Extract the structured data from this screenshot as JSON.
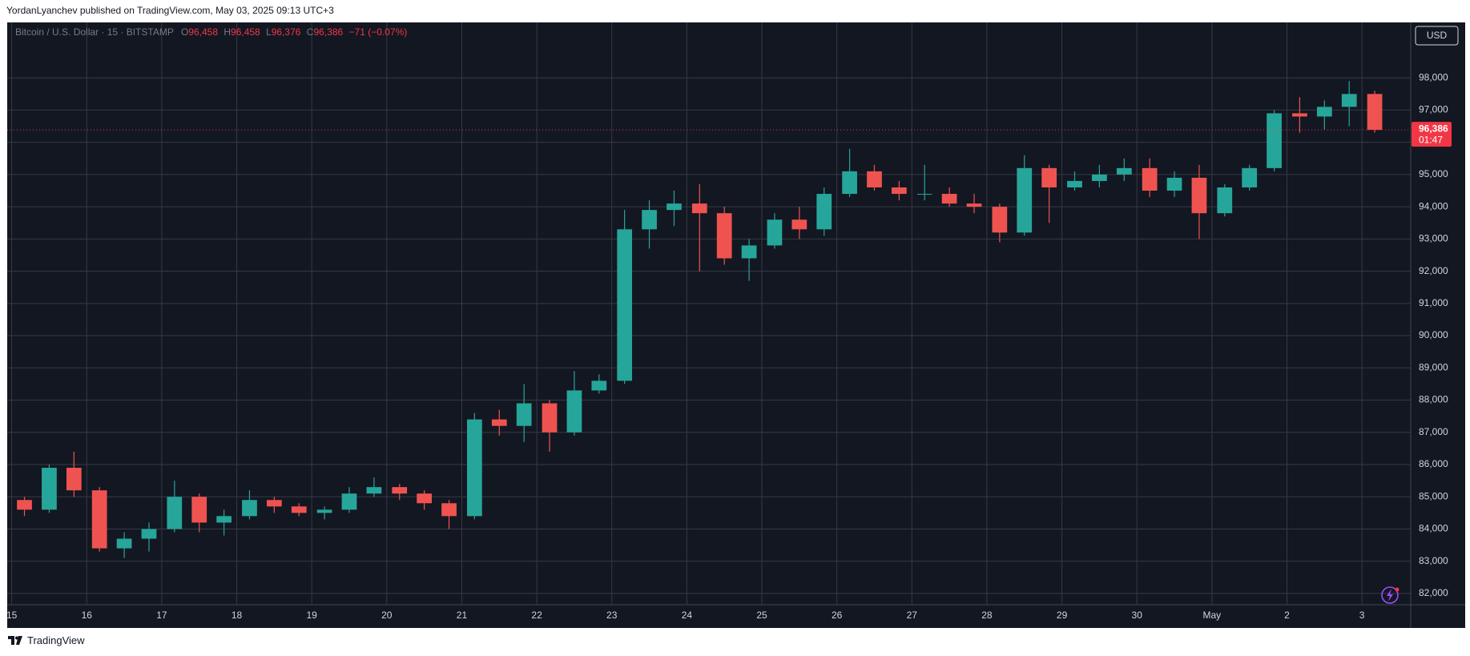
{
  "header": {
    "text": "YordanLyanchev published on TradingView.com, May 03, 2025 09:13 UTC+3"
  },
  "footer": {
    "brand": "TradingView"
  },
  "chart_data": {
    "type": "candlestick",
    "symbol": "Bitcoin / U.S. Dollar · 15 · BITSTAMP",
    "ohlc_legend": [
      {
        "label": "O",
        "value": "96,458"
      },
      {
        "label": "H",
        "value": "96,458"
      },
      {
        "label": "L",
        "value": "96,376"
      },
      {
        "label": "C",
        "value": "96,386"
      }
    ],
    "change": "−71 (−0.07%)",
    "currency": "USD",
    "x": [
      0.17,
      0.5,
      0.83,
      1.17,
      1.5,
      1.83,
      2.17,
      2.5,
      2.83,
      3.17,
      3.5,
      3.83,
      4.17,
      4.5,
      4.83,
      5.17,
      5.5,
      5.83,
      6.17,
      6.5,
      6.83,
      7.17,
      7.5,
      7.83,
      8.17,
      8.5,
      8.83,
      9.17,
      9.5,
      9.83,
      10.17,
      10.5,
      10.83,
      11.17,
      11.5,
      11.83,
      12.17,
      12.5,
      12.83,
      13.17,
      13.5,
      13.83,
      14.17,
      14.5,
      14.83,
      15.17,
      15.5,
      15.83,
      16.17,
      16.5,
      16.83,
      17.17,
      17.5,
      17.83,
      18.17
    ],
    "open": [
      84900,
      84600,
      85900,
      85200,
      83400,
      83700,
      84000,
      85000,
      84200,
      84400,
      84900,
      84700,
      84500,
      84600,
      85100,
      85300,
      85100,
      84800,
      84400,
      87400,
      87200,
      87900,
      87000,
      88300,
      88600,
      93300,
      93900,
      94100,
      93800,
      92400,
      92800,
      93600,
      93300,
      94400,
      95100,
      94600,
      94400,
      94400,
      94100,
      94000,
      93200,
      95200,
      94600,
      94800,
      95000,
      95200,
      94500,
      94900,
      93800,
      94600,
      95200,
      96900,
      96800,
      97100,
      97500
    ],
    "high": [
      85000,
      86000,
      86400,
      85300,
      83900,
      84200,
      85500,
      85100,
      84600,
      85200,
      85000,
      84800,
      84700,
      85300,
      85600,
      85400,
      85200,
      84900,
      87600,
      87700,
      88500,
      88000,
      88900,
      88800,
      93900,
      94200,
      94500,
      94700,
      94000,
      93000,
      93800,
      94000,
      94600,
      95800,
      95300,
      94800,
      95300,
      94600,
      94400,
      94100,
      95600,
      95300,
      95100,
      95300,
      95500,
      95500,
      95100,
      95300,
      94700,
      95300,
      97000,
      97400,
      97300,
      97900,
      97600
    ],
    "low": [
      84400,
      84500,
      85000,
      83300,
      83100,
      83300,
      83900,
      83900,
      83800,
      84300,
      84500,
      84400,
      84300,
      84500,
      85000,
      84900,
      84600,
      84000,
      84300,
      86900,
      86700,
      86400,
      86900,
      88200,
      88500,
      92700,
      93400,
      92000,
      92200,
      91700,
      92700,
      93000,
      93100,
      94300,
      94500,
      94200,
      94200,
      94000,
      93800,
      92900,
      93100,
      93500,
      94500,
      94600,
      94800,
      94300,
      94300,
      93000,
      93700,
      94500,
      95100,
      96300,
      96400,
      96500,
      96300
    ],
    "close": [
      84600,
      85900,
      85200,
      83400,
      83700,
      84000,
      85000,
      84200,
      84400,
      84900,
      84700,
      84500,
      84600,
      85100,
      85300,
      85100,
      84800,
      84400,
      87400,
      87200,
      87900,
      87000,
      88300,
      88600,
      93300,
      93900,
      94100,
      93800,
      92400,
      92800,
      93600,
      93300,
      94400,
      95100,
      94600,
      94400,
      94400,
      94100,
      94000,
      93200,
      95200,
      94600,
      94800,
      95000,
      95200,
      94500,
      94900,
      93800,
      94600,
      95200,
      96900,
      96800,
      97100,
      97500,
      96386
    ],
    "up_color": "#26a69a",
    "down_color": "#ef5350",
    "xlim": [
      -0.06,
      18.65
    ],
    "xticks": [
      {
        "value": 0,
        "label": "15"
      },
      {
        "value": 1,
        "label": "16"
      },
      {
        "value": 2,
        "label": "17"
      },
      {
        "value": 3,
        "label": "18"
      },
      {
        "value": 4,
        "label": "19"
      },
      {
        "value": 5,
        "label": "20"
      },
      {
        "value": 6,
        "label": "21"
      },
      {
        "value": 7,
        "label": "22"
      },
      {
        "value": 8,
        "label": "23"
      },
      {
        "value": 9,
        "label": "24"
      },
      {
        "value": 10,
        "label": "25"
      },
      {
        "value": 11,
        "label": "26"
      },
      {
        "value": 12,
        "label": "27"
      },
      {
        "value": 13,
        "label": "28"
      },
      {
        "value": 14,
        "label": "29"
      },
      {
        "value": 15,
        "label": "30"
      },
      {
        "value": 16,
        "label": "May"
      },
      {
        "value": 17,
        "label": "2"
      },
      {
        "value": 18,
        "label": "3"
      }
    ],
    "ylim": [
      81650,
      99720
    ],
    "yticks": [
      {
        "value": 82000,
        "label": "82,000"
      },
      {
        "value": 83000,
        "label": "83,000"
      },
      {
        "value": 84000,
        "label": "84,000"
      },
      {
        "value": 85000,
        "label": "85,000"
      },
      {
        "value": 86000,
        "label": "86,000"
      },
      {
        "value": 87000,
        "label": "87,000"
      },
      {
        "value": 88000,
        "label": "88,000"
      },
      {
        "value": 89000,
        "label": "89,000"
      },
      {
        "value": 90000,
        "label": "90,000"
      },
      {
        "value": 91000,
        "label": "91,000"
      },
      {
        "value": 92000,
        "label": "92,000"
      },
      {
        "value": 93000,
        "label": "93,000"
      },
      {
        "value": 94000,
        "label": "94,000"
      },
      {
        "value": 95000,
        "label": "95,000"
      },
      {
        "value": 96000,
        "label": "96,000"
      },
      {
        "value": 97000,
        "label": "97,000"
      },
      {
        "value": 98000,
        "label": "98,000"
      }
    ],
    "grid": true,
    "last_price": {
      "value": 96386,
      "label": "96,386",
      "countdown": "01:47",
      "color": "#f23645"
    }
  }
}
